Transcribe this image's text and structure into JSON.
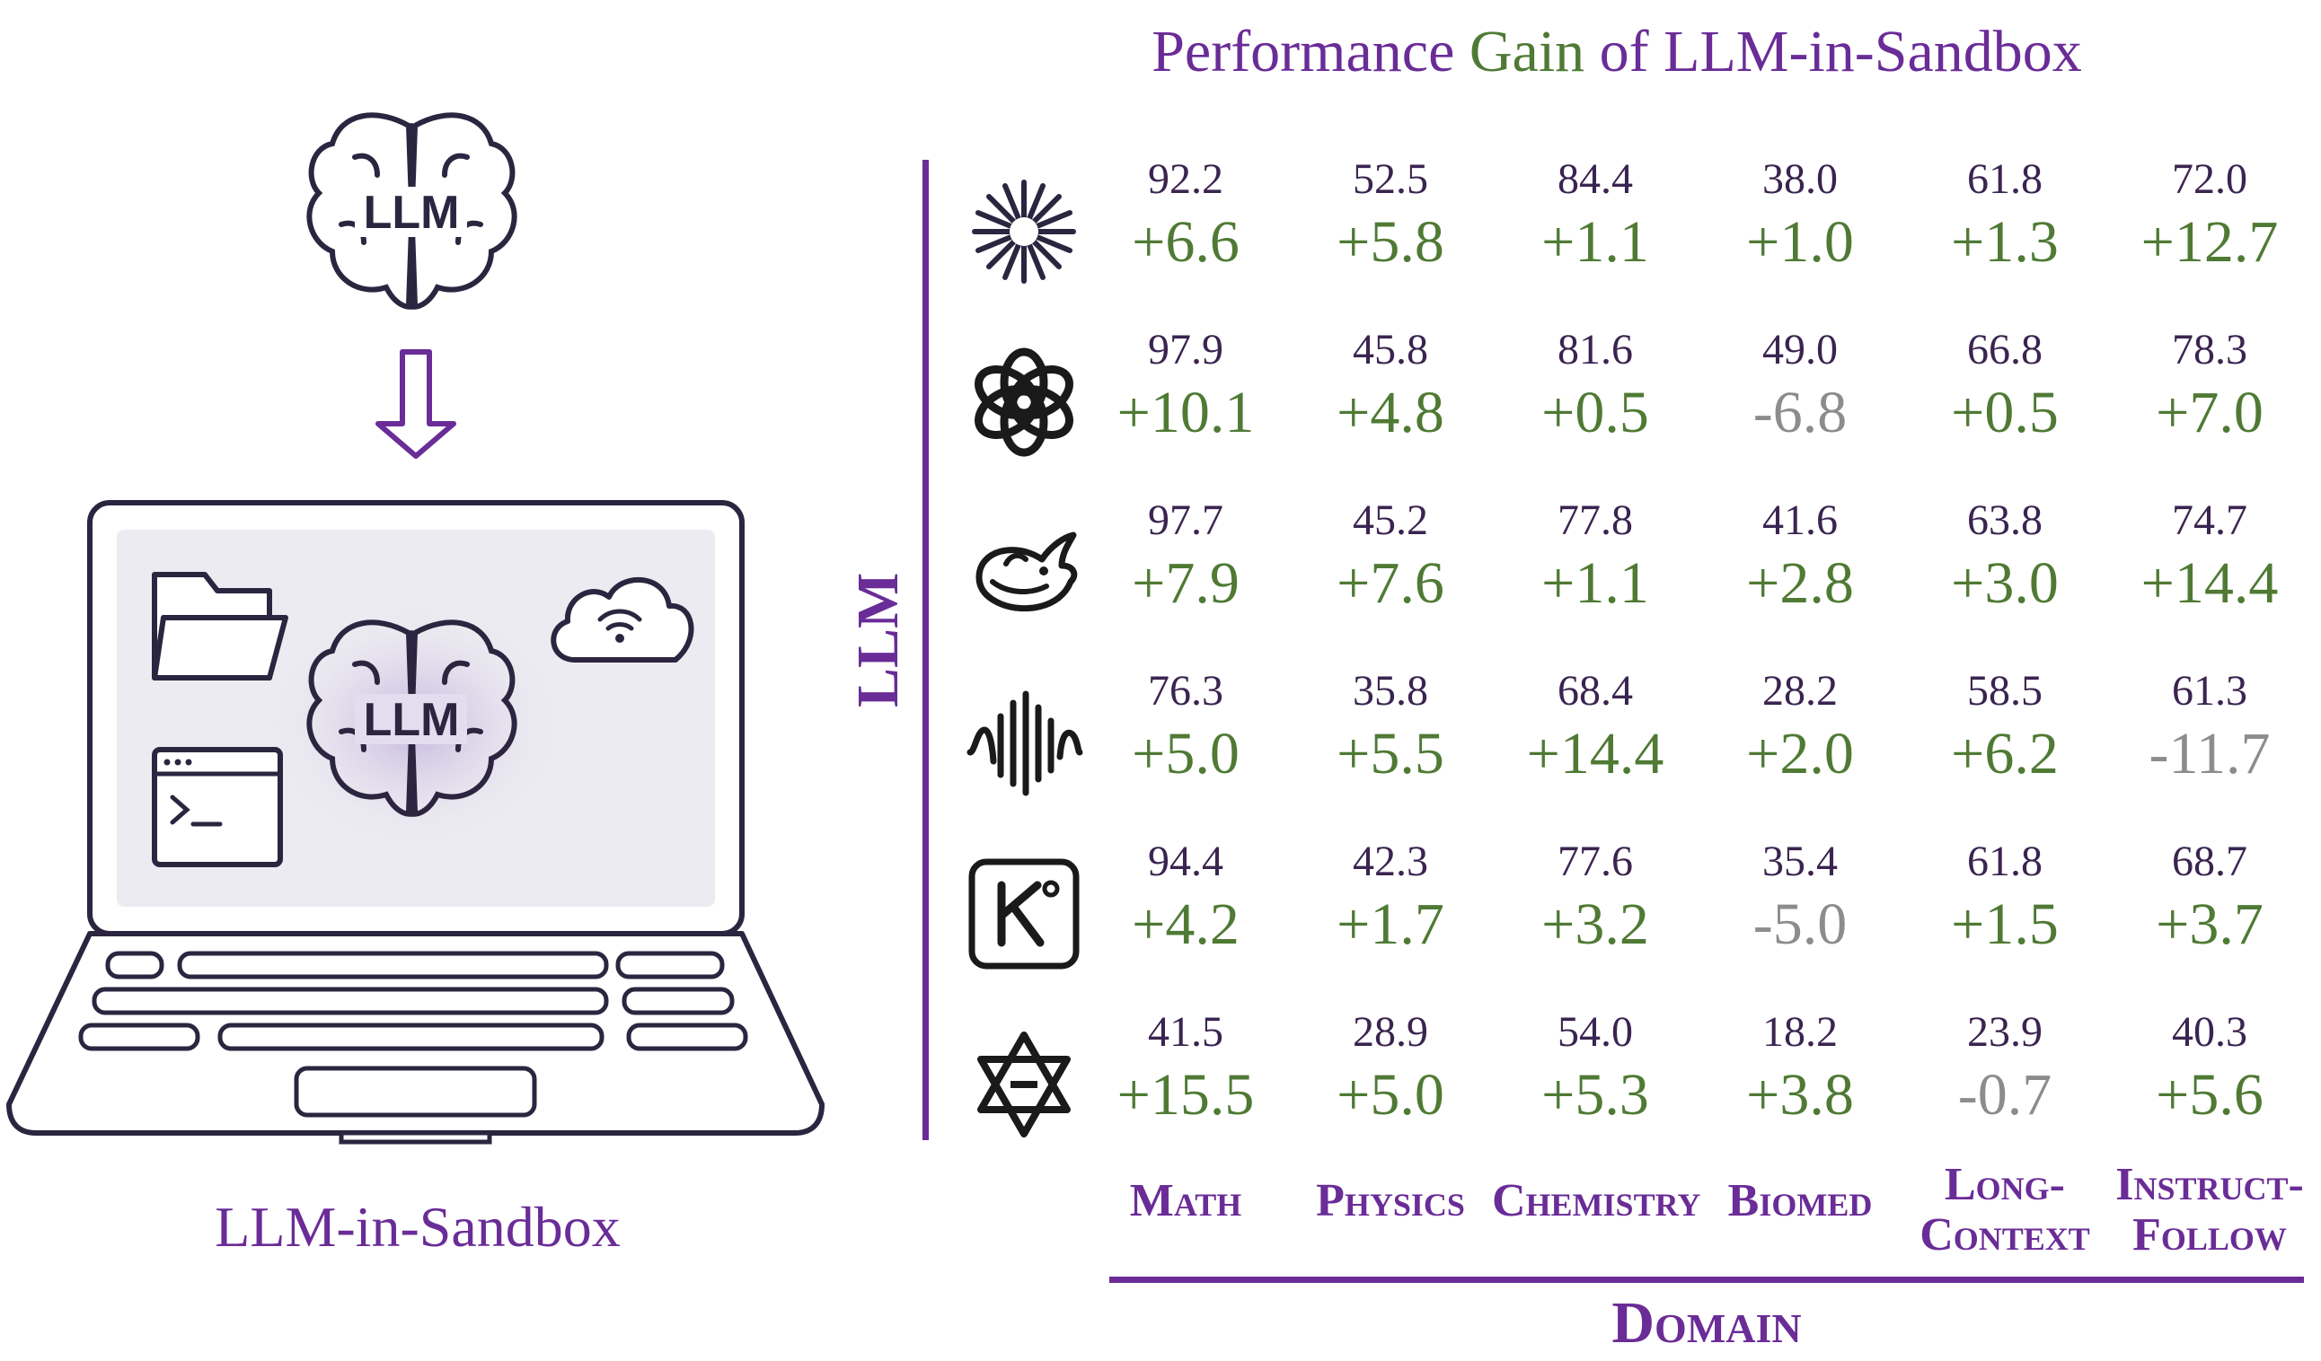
{
  "title": {
    "part1": "Performance",
    "part2": "Gain",
    "part3": "of LLM-in-Sandbox"
  },
  "illustration": {
    "brain_text_top": "LLM",
    "brain_text_screen": "LLM",
    "caption": "LLM-in-Sandbox"
  },
  "axis": {
    "llm_label": "LLM",
    "domain_label": "Domain"
  },
  "domains": [
    "Math",
    "Physics",
    "Chemistry",
    "Biomed",
    "Long-Context",
    "Instruct-Follow"
  ],
  "domain_lines": [
    [
      "Math"
    ],
    [
      "Physics"
    ],
    [
      "Chemistry"
    ],
    [
      "Biomed"
    ],
    [
      "Long-",
      "Context"
    ],
    [
      "Instruct-",
      "Follow"
    ]
  ],
  "models": [
    {
      "icon": "starburst-logo-icon",
      "base": [
        "92.2",
        "52.5",
        "84.4",
        "38.0",
        "61.8",
        "72.0"
      ],
      "gain": [
        "+6.6",
        "+5.8",
        "+1.1",
        "+1.0",
        "+1.3",
        "+12.7"
      ]
    },
    {
      "icon": "openai-logo-icon",
      "base": [
        "97.9",
        "45.8",
        "81.6",
        "49.0",
        "66.8",
        "78.3"
      ],
      "gain": [
        "+10.1",
        "+4.8",
        "+0.5",
        "-6.8",
        "+0.5",
        "+7.0"
      ]
    },
    {
      "icon": "whale-logo-icon",
      "base": [
        "97.7",
        "45.2",
        "77.8",
        "41.6",
        "63.8",
        "74.7"
      ],
      "gain": [
        "+7.9",
        "+7.6",
        "+1.1",
        "+2.8",
        "+3.0",
        "+14.4"
      ]
    },
    {
      "icon": "waveform-logo-icon",
      "base": [
        "76.3",
        "35.8",
        "68.4",
        "28.2",
        "58.5",
        "61.3"
      ],
      "gain": [
        "+5.0",
        "+5.5",
        "+14.4",
        "+2.0",
        "+6.2",
        "-11.7"
      ]
    },
    {
      "icon": "k-square-logo-icon",
      "base": [
        "94.4",
        "42.3",
        "77.6",
        "35.4",
        "61.8",
        "68.7"
      ],
      "gain": [
        "+4.2",
        "+1.7",
        "+3.2",
        "-5.0",
        "+1.5",
        "+3.7"
      ]
    },
    {
      "icon": "hexagram-logo-icon",
      "base": [
        "41.5",
        "28.9",
        "54.0",
        "18.2",
        "23.9",
        "40.3"
      ],
      "gain": [
        "+15.5",
        "+5.0",
        "+5.3",
        "+3.8",
        "-0.7",
        "+5.6"
      ]
    }
  ],
  "colors": {
    "purple": "#6a2c97",
    "green": "#4f7a34",
    "negative": "#8c8c8c",
    "screen": "#ecebf1"
  }
}
